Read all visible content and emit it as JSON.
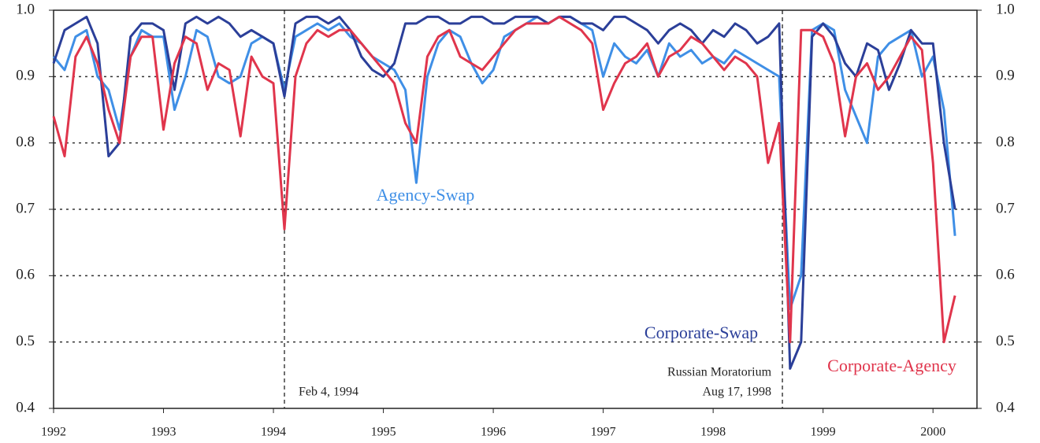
{
  "chart_data": {
    "type": "line",
    "x": [
      1992.0,
      1992.1,
      1992.2,
      1992.3,
      1992.4,
      1992.5,
      1992.6,
      1992.7,
      1992.8,
      1992.9,
      1993.0,
      1993.1,
      1993.2,
      1993.3,
      1993.4,
      1993.5,
      1993.6,
      1993.7,
      1993.8,
      1993.9,
      1994.0,
      1994.1,
      1994.2,
      1994.3,
      1994.4,
      1994.5,
      1994.6,
      1994.7,
      1994.8,
      1994.9,
      1995.0,
      1995.1,
      1995.2,
      1995.3,
      1995.4,
      1995.5,
      1995.6,
      1995.7,
      1995.8,
      1995.9,
      1996.0,
      1996.1,
      1996.2,
      1996.3,
      1996.4,
      1996.5,
      1996.6,
      1996.7,
      1996.8,
      1996.9,
      1997.0,
      1997.1,
      1997.2,
      1997.3,
      1997.4,
      1997.5,
      1997.6,
      1997.7,
      1997.8,
      1997.9,
      1998.0,
      1998.1,
      1998.2,
      1998.3,
      1998.4,
      1998.5,
      1998.6,
      1998.7,
      1998.8,
      1998.9,
      1999.0,
      1999.1,
      1999.2,
      1999.3,
      1999.4,
      1999.5,
      1999.6,
      1999.7,
      1999.8,
      1999.9,
      2000.0,
      2000.1,
      2000.2
    ],
    "series": [
      {
        "name": "Agency-Swap",
        "color": "#3f8fe6",
        "values": [
          0.93,
          0.91,
          0.96,
          0.97,
          0.9,
          0.88,
          0.82,
          0.93,
          0.97,
          0.96,
          0.96,
          0.85,
          0.9,
          0.97,
          0.96,
          0.9,
          0.89,
          0.9,
          0.95,
          0.96,
          0.95,
          0.88,
          0.96,
          0.97,
          0.98,
          0.97,
          0.98,
          0.96,
          0.95,
          0.93,
          0.92,
          0.91,
          0.88,
          0.74,
          0.9,
          0.95,
          0.97,
          0.96,
          0.92,
          0.89,
          0.91,
          0.96,
          0.97,
          0.98,
          0.99,
          0.98,
          0.99,
          0.99,
          0.98,
          0.97,
          0.9,
          0.95,
          0.93,
          0.92,
          0.94,
          0.9,
          0.95,
          0.93,
          0.94,
          0.92,
          0.93,
          0.92,
          0.94,
          0.93,
          0.92,
          0.91,
          0.9,
          0.55,
          0.6,
          0.97,
          0.98,
          0.97,
          0.88,
          0.84,
          0.8,
          0.93,
          0.95,
          0.96,
          0.97,
          0.9,
          0.93,
          0.85,
          0.66
        ]
      },
      {
        "name": "Corporate-Swap",
        "color": "#2b3f99",
        "values": [
          0.92,
          0.97,
          0.98,
          0.99,
          0.95,
          0.78,
          0.8,
          0.96,
          0.98,
          0.98,
          0.97,
          0.88,
          0.98,
          0.99,
          0.98,
          0.99,
          0.98,
          0.96,
          0.97,
          0.96,
          0.95,
          0.87,
          0.98,
          0.99,
          0.99,
          0.98,
          0.99,
          0.97,
          0.93,
          0.91,
          0.9,
          0.92,
          0.98,
          0.98,
          0.99,
          0.99,
          0.98,
          0.98,
          0.99,
          0.99,
          0.98,
          0.98,
          0.99,
          0.99,
          0.99,
          0.98,
          0.99,
          0.99,
          0.98,
          0.98,
          0.97,
          0.99,
          0.99,
          0.98,
          0.97,
          0.95,
          0.97,
          0.98,
          0.97,
          0.95,
          0.97,
          0.96,
          0.98,
          0.97,
          0.95,
          0.96,
          0.98,
          0.46,
          0.5,
          0.96,
          0.98,
          0.96,
          0.92,
          0.9,
          0.95,
          0.94,
          0.88,
          0.92,
          0.97,
          0.95,
          0.95,
          0.8,
          0.7
        ]
      },
      {
        "name": "Corporate-Agency",
        "color": "#e0354c",
        "values": [
          0.84,
          0.78,
          0.93,
          0.96,
          0.92,
          0.85,
          0.8,
          0.93,
          0.96,
          0.96,
          0.82,
          0.92,
          0.96,
          0.95,
          0.88,
          0.92,
          0.91,
          0.81,
          0.93,
          0.9,
          0.89,
          0.67,
          0.9,
          0.95,
          0.97,
          0.96,
          0.97,
          0.97,
          0.95,
          0.93,
          0.91,
          0.89,
          0.83,
          0.8,
          0.93,
          0.96,
          0.97,
          0.93,
          0.92,
          0.91,
          0.93,
          0.95,
          0.97,
          0.98,
          0.98,
          0.98,
          0.99,
          0.98,
          0.97,
          0.95,
          0.85,
          0.89,
          0.92,
          0.93,
          0.95,
          0.9,
          0.93,
          0.94,
          0.96,
          0.95,
          0.93,
          0.91,
          0.93,
          0.92,
          0.9,
          0.77,
          0.83,
          0.5,
          0.97,
          0.97,
          0.96,
          0.92,
          0.81,
          0.9,
          0.92,
          0.88,
          0.9,
          0.93,
          0.96,
          0.94,
          0.77,
          0.5,
          0.57
        ]
      }
    ],
    "xlim": [
      1992,
      2000.4
    ],
    "xticks": [
      1992,
      1993,
      1994,
      1995,
      1996,
      1997,
      1998,
      1999,
      2000
    ],
    "ylim": [
      0.4,
      1.0
    ],
    "yticks": [
      0.4,
      0.5,
      0.6,
      0.7,
      0.8,
      0.9,
      {
        "value": 1.0,
        "label": "1.0"
      }
    ],
    "y2lim": [
      0.4,
      1.0
    ],
    "y2ticks": [
      0.4,
      0.5,
      0.6,
      0.7,
      0.8,
      0.9,
      {
        "value": 1.0,
        "label": "1.0"
      }
    ],
    "grid": true,
    "events": [
      {
        "x": 1994.1,
        "label": [
          "Feb 4, 1994"
        ]
      },
      {
        "x": 1998.63,
        "label": [
          "Russian Moratorium",
          "Aug 17, 1998"
        ]
      }
    ]
  }
}
